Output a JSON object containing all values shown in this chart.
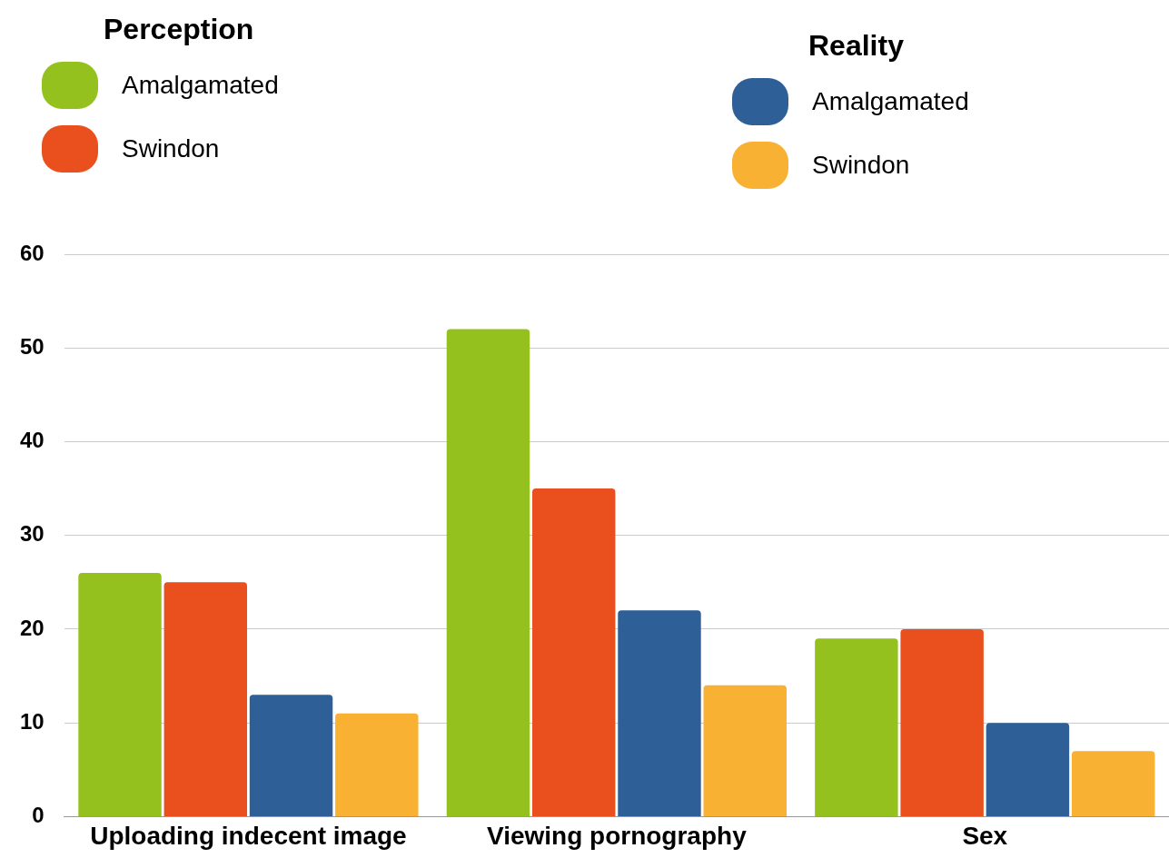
{
  "chart_data": {
    "type": "bar",
    "categories": [
      "Uploading indecent image",
      "Viewing pornography",
      "Sex"
    ],
    "series": [
      {
        "name": "Amalgamated",
        "color": "#95c11f",
        "values": [
          26,
          52,
          19
        ]
      },
      {
        "name": "Swindon",
        "color": "#e9501e",
        "values": [
          25,
          35,
          20
        ]
      },
      {
        "name": "Amalgamated",
        "color": "#2e6097",
        "values": [
          13,
          22,
          10
        ]
      },
      {
        "name": "Swindon",
        "color": "#f8b133",
        "values": [
          11,
          14,
          7
        ]
      }
    ],
    "annotations": [
      "Perception",
      "Reality"
    ],
    "ylim": [
      0,
      60
    ],
    "yticks": [
      0,
      10,
      20,
      30,
      40,
      50,
      60
    ],
    "grid": "y",
    "legend": "top"
  }
}
